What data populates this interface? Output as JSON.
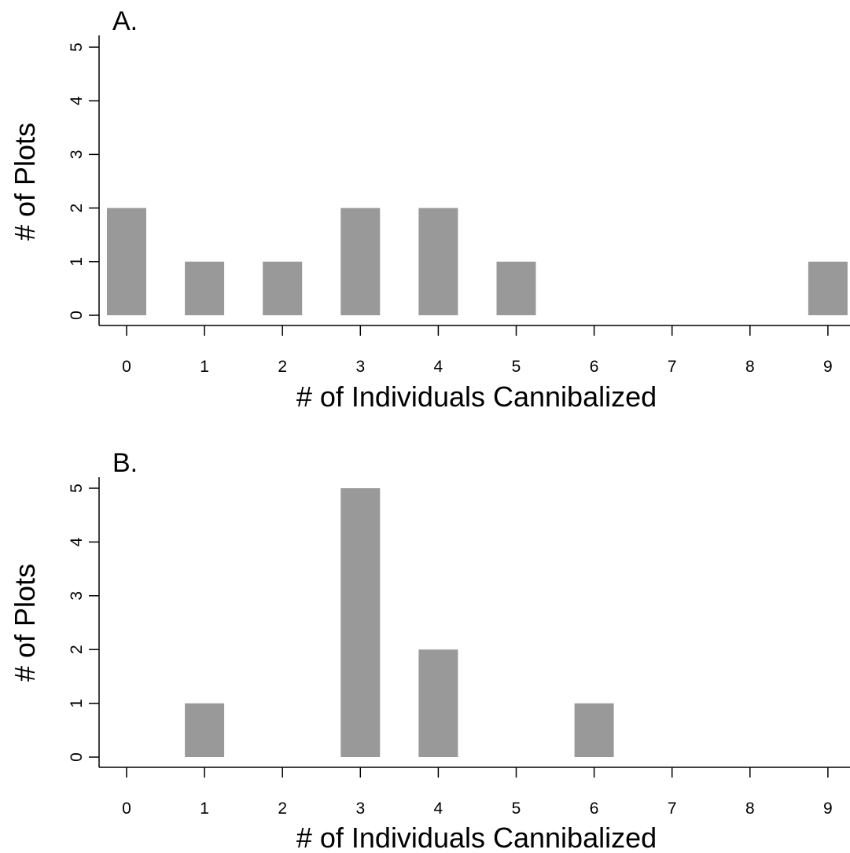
{
  "chart_data": [
    {
      "type": "bar",
      "panel_label": "A.",
      "xlabel": "# of Individuals Cannibalized",
      "ylabel": "# of Plots",
      "categories": [
        "0",
        "1",
        "2",
        "3",
        "4",
        "5",
        "6",
        "7",
        "8",
        "9"
      ],
      "values": [
        2,
        1,
        1,
        2,
        2,
        1,
        0,
        0,
        0,
        1
      ],
      "yticks": [
        "0",
        "1",
        "2",
        "3",
        "4",
        "5"
      ],
      "ylim": [
        0,
        5
      ],
      "bar_color": "#999999",
      "grid": false
    },
    {
      "type": "bar",
      "panel_label": "B.",
      "xlabel": "# of Individuals Cannibalized",
      "ylabel": "# of Plots",
      "categories": [
        "0",
        "1",
        "2",
        "3",
        "4",
        "5",
        "6",
        "7",
        "8",
        "9"
      ],
      "values": [
        0,
        1,
        0,
        5,
        2,
        0,
        1,
        0,
        0,
        0
      ],
      "yticks": [
        "0",
        "1",
        "2",
        "3",
        "4",
        "5"
      ],
      "ylim": [
        0,
        5
      ],
      "bar_color": "#999999",
      "grid": false
    }
  ]
}
